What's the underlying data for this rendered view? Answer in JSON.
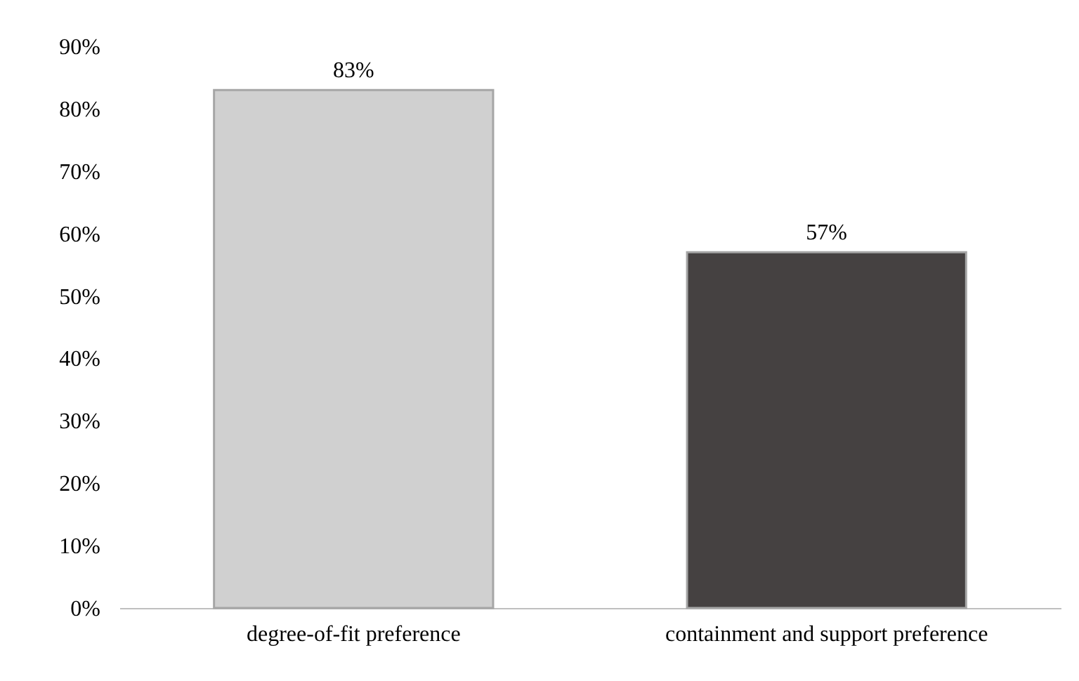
{
  "chart_data": {
    "type": "bar",
    "categories": [
      "degree-of-fit preference",
      "containment and support preference"
    ],
    "values": [
      83,
      57
    ],
    "colors": [
      "#d0d0d0",
      "#454141"
    ],
    "value_labels": [
      "83%",
      "57%"
    ],
    "ylim": [
      0,
      90
    ],
    "yticks": [
      {
        "value": 0,
        "label": "0%"
      },
      {
        "value": 10,
        "label": "10%"
      },
      {
        "value": 20,
        "label": "20%"
      },
      {
        "value": 30,
        "label": "30%"
      },
      {
        "value": 40,
        "label": "40%"
      },
      {
        "value": 50,
        "label": "50%"
      },
      {
        "value": 60,
        "label": "60%"
      },
      {
        "value": 70,
        "label": "70%"
      },
      {
        "value": 80,
        "label": "80%"
      },
      {
        "value": 90,
        "label": "90%"
      }
    ],
    "grid": false
  }
}
